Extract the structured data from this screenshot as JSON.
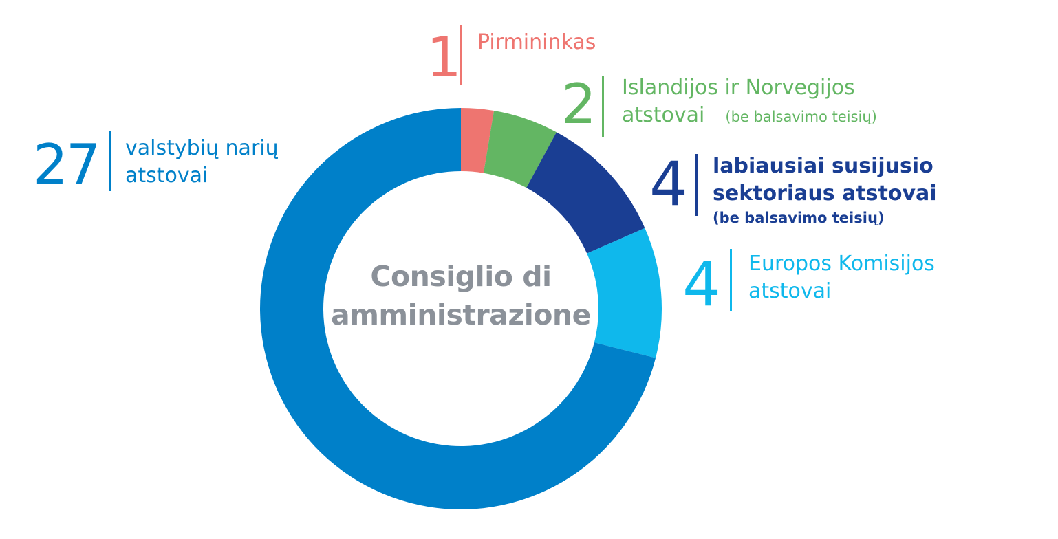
{
  "chart_data": {
    "type": "pie",
    "subtype": "donut",
    "title": "Consiglio di amministrazione",
    "title_lines": [
      "Consiglio di",
      "amministrazione"
    ],
    "segments": [
      {
        "value": 1,
        "label_lines": [
          "Pirmininkas"
        ],
        "note": "",
        "color": "#ee7570"
      },
      {
        "value": 2,
        "label_lines": [
          "Islandijos ir Norvegijos",
          "atstovai"
        ],
        "note": "(be balsavimo teisių)",
        "color": "#63b663"
      },
      {
        "value": 4,
        "label_lines": [
          "labiausiai susijusio",
          "sektoriaus atstovai"
        ],
        "note": "(be balsavimo teisių)",
        "color": "#1a3e93"
      },
      {
        "value": 4,
        "label_lines": [
          "Europos Komisijos",
          "atstovai"
        ],
        "note": "",
        "color": "#0fb8ec"
      },
      {
        "value": 27,
        "label_lines": [
          "valstybių narių",
          "atstovai"
        ],
        "note": "",
        "color": "#0080c9"
      }
    ]
  }
}
